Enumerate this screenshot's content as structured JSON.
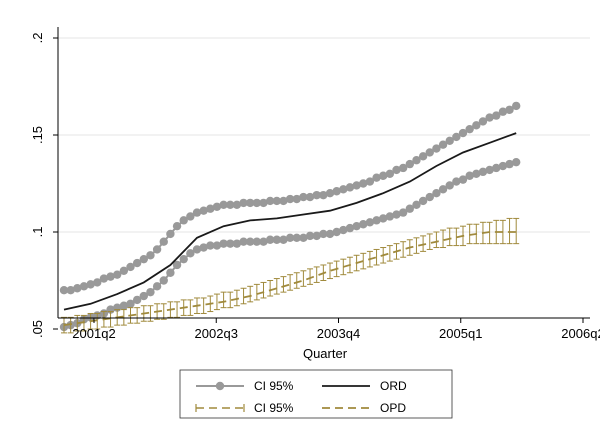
{
  "chart_data": {
    "type": "line",
    "xlabel": "Quarter",
    "ylabel": "",
    "x_ticks": [
      "2001q2",
      "2002q3",
      "2003q4",
      "2005q1",
      "2006q2"
    ],
    "y_ticks": [
      ".05",
      ".1",
      ".15",
      ".2"
    ],
    "xlim": [
      0,
      20
    ],
    "ylim": [
      0.05,
      0.2
    ],
    "grid": "horizontal",
    "series": [
      {
        "name": "CI 95%",
        "group": "ORD",
        "style": "line-dots",
        "color": "#999999",
        "x": [
          0.0,
          0.25,
          0.5,
          0.75,
          1.0,
          1.25,
          1.5,
          1.75,
          2.0,
          2.25,
          2.5,
          2.75,
          3.0,
          3.25,
          3.5,
          3.75,
          4.0,
          4.25,
          4.5,
          4.75,
          5.0,
          5.25,
          5.5,
          5.75,
          6.0,
          6.25,
          6.5,
          6.75,
          7.0,
          7.25,
          7.5,
          7.75,
          8.0,
          8.25,
          8.5,
          8.75,
          9.0,
          9.25,
          9.5,
          9.75,
          10.0,
          10.25,
          10.5,
          10.75,
          11.0,
          11.25,
          11.5,
          11.75,
          12.0,
          12.25,
          12.5,
          12.75,
          13.0,
          13.25,
          13.5,
          13.75,
          14.0,
          14.25,
          14.5,
          14.75,
          15.0,
          15.25,
          15.5,
          15.75,
          16.0,
          16.25,
          16.5,
          16.75,
          17.0
        ],
        "y": [
          0.07,
          0.07,
          0.071,
          0.072,
          0.073,
          0.074,
          0.076,
          0.077,
          0.078,
          0.08,
          0.082,
          0.084,
          0.086,
          0.088,
          0.091,
          0.095,
          0.099,
          0.103,
          0.106,
          0.108,
          0.11,
          0.111,
          0.112,
          0.113,
          0.114,
          0.114,
          0.114,
          0.115,
          0.115,
          0.115,
          0.115,
          0.116,
          0.116,
          0.116,
          0.117,
          0.117,
          0.118,
          0.118,
          0.119,
          0.119,
          0.12,
          0.121,
          0.122,
          0.123,
          0.124,
          0.125,
          0.126,
          0.128,
          0.129,
          0.13,
          0.132,
          0.133,
          0.135,
          0.137,
          0.139,
          0.141,
          0.143,
          0.145,
          0.147,
          0.149,
          0.151,
          0.153,
          0.155,
          0.157,
          0.159,
          0.16,
          0.162,
          0.163,
          0.165
        ]
      },
      {
        "name": "CI 95%",
        "group": "ORD",
        "style": "line-dots",
        "color": "#999999",
        "x": [
          0.0,
          0.25,
          0.5,
          0.75,
          1.0,
          1.25,
          1.5,
          1.75,
          2.0,
          2.25,
          2.5,
          2.75,
          3.0,
          3.25,
          3.5,
          3.75,
          4.0,
          4.25,
          4.5,
          4.75,
          5.0,
          5.25,
          5.5,
          5.75,
          6.0,
          6.25,
          6.5,
          6.75,
          7.0,
          7.25,
          7.5,
          7.75,
          8.0,
          8.25,
          8.5,
          8.75,
          9.0,
          9.25,
          9.5,
          9.75,
          10.0,
          10.25,
          10.5,
          10.75,
          11.0,
          11.25,
          11.5,
          11.75,
          12.0,
          12.25,
          12.5,
          12.75,
          13.0,
          13.25,
          13.5,
          13.75,
          14.0,
          14.25,
          14.5,
          14.75,
          15.0,
          15.25,
          15.5,
          15.75,
          16.0,
          16.25,
          16.5,
          16.75,
          17.0
        ],
        "y": [
          0.051,
          0.052,
          0.053,
          0.055,
          0.056,
          0.057,
          0.058,
          0.06,
          0.061,
          0.062,
          0.063,
          0.065,
          0.067,
          0.069,
          0.072,
          0.075,
          0.079,
          0.083,
          0.086,
          0.089,
          0.091,
          0.092,
          0.093,
          0.093,
          0.094,
          0.094,
          0.094,
          0.095,
          0.095,
          0.095,
          0.095,
          0.096,
          0.096,
          0.096,
          0.097,
          0.097,
          0.097,
          0.098,
          0.098,
          0.099,
          0.099,
          0.1,
          0.101,
          0.102,
          0.103,
          0.104,
          0.105,
          0.106,
          0.107,
          0.108,
          0.109,
          0.11,
          0.112,
          0.114,
          0.116,
          0.118,
          0.12,
          0.122,
          0.124,
          0.126,
          0.127,
          0.129,
          0.13,
          0.131,
          0.132,
          0.133,
          0.134,
          0.135,
          0.136
        ]
      },
      {
        "name": "ORD",
        "style": "solid",
        "color": "#1a1a1a",
        "x": [
          0,
          1,
          2,
          3,
          4,
          5,
          6,
          7,
          8,
          9,
          10,
          11,
          12,
          13,
          14,
          15,
          16,
          17
        ],
        "y": [
          0.06,
          0.063,
          0.068,
          0.074,
          0.083,
          0.097,
          0.103,
          0.106,
          0.107,
          0.109,
          0.111,
          0.115,
          0.12,
          0.126,
          0.134,
          0.141,
          0.146,
          0.151
        ]
      },
      {
        "name": "CI 95%",
        "group": "OPD",
        "style": "capped-bars",
        "color": "#a08a3c",
        "x": [
          0.0,
          0.25,
          0.5,
          0.75,
          1.0,
          1.25,
          1.5,
          1.75,
          2.0,
          2.25,
          2.5,
          2.75,
          3.0,
          3.25,
          3.5,
          3.75,
          4.0,
          4.25,
          4.5,
          4.75,
          5.0,
          5.25,
          5.5,
          5.75,
          6.0,
          6.25,
          6.5,
          6.75,
          7.0,
          7.25,
          7.5,
          7.75,
          8.0,
          8.25,
          8.5,
          8.75,
          9.0,
          9.25,
          9.5,
          9.75,
          10.0,
          10.25,
          10.5,
          10.75,
          11.0,
          11.25,
          11.5,
          11.75,
          12.0,
          12.25,
          12.5,
          12.75,
          13.0,
          13.25,
          13.5,
          13.75,
          14.0,
          14.25,
          14.5,
          14.75,
          15.0,
          15.25,
          15.5,
          15.75,
          16.0,
          16.25,
          16.5,
          16.75,
          17.0
        ],
        "lower": [
          0.048,
          0.048,
          0.049,
          0.049,
          0.05,
          0.05,
          0.051,
          0.051,
          0.052,
          0.052,
          0.053,
          0.053,
          0.054,
          0.054,
          0.055,
          0.055,
          0.056,
          0.056,
          0.057,
          0.057,
          0.058,
          0.058,
          0.059,
          0.06,
          0.061,
          0.061,
          0.062,
          0.063,
          0.064,
          0.065,
          0.066,
          0.067,
          0.068,
          0.069,
          0.07,
          0.071,
          0.072,
          0.073,
          0.074,
          0.075,
          0.076,
          0.077,
          0.078,
          0.079,
          0.08,
          0.081,
          0.082,
          0.083,
          0.084,
          0.085,
          0.086,
          0.087,
          0.088,
          0.089,
          0.09,
          0.091,
          0.092,
          0.092,
          0.093,
          0.093,
          0.093,
          0.094,
          0.094,
          0.094,
          0.094,
          0.094,
          0.094,
          0.094,
          0.094
        ],
        "upper": [
          0.056,
          0.056,
          0.057,
          0.057,
          0.058,
          0.058,
          0.059,
          0.059,
          0.06,
          0.06,
          0.061,
          0.061,
          0.062,
          0.062,
          0.063,
          0.063,
          0.064,
          0.064,
          0.065,
          0.065,
          0.066,
          0.066,
          0.067,
          0.068,
          0.069,
          0.069,
          0.07,
          0.071,
          0.072,
          0.073,
          0.074,
          0.075,
          0.076,
          0.077,
          0.078,
          0.079,
          0.08,
          0.081,
          0.082,
          0.083,
          0.084,
          0.085,
          0.086,
          0.087,
          0.088,
          0.089,
          0.09,
          0.091,
          0.092,
          0.093,
          0.094,
          0.095,
          0.096,
          0.097,
          0.098,
          0.099,
          0.1,
          0.101,
          0.102,
          0.102,
          0.103,
          0.104,
          0.104,
          0.105,
          0.105,
          0.106,
          0.106,
          0.107,
          0.107
        ]
      },
      {
        "name": "OPD",
        "style": "dashed",
        "color": "#a08a3c",
        "x": [
          0,
          1,
          2,
          3,
          4,
          5,
          6,
          7,
          8,
          9,
          10,
          11,
          12,
          13,
          14,
          15,
          16,
          17
        ],
        "y": [
          0.052,
          0.054,
          0.056,
          0.058,
          0.06,
          0.062,
          0.064,
          0.067,
          0.071,
          0.075,
          0.08,
          0.084,
          0.088,
          0.092,
          0.095,
          0.098,
          0.1,
          0.1
        ]
      }
    ],
    "legend": {
      "placement": "bottom",
      "entries": [
        {
          "label": "CI 95%",
          "style": "line-dots",
          "color": "#999999"
        },
        {
          "label": "ORD",
          "style": "solid",
          "color": "#1a1a1a"
        },
        {
          "label": "CI 95%",
          "style": "capped-bars",
          "color": "#a08a3c"
        },
        {
          "label": "OPD",
          "style": "dashed",
          "color": "#a08a3c"
        }
      ]
    }
  }
}
